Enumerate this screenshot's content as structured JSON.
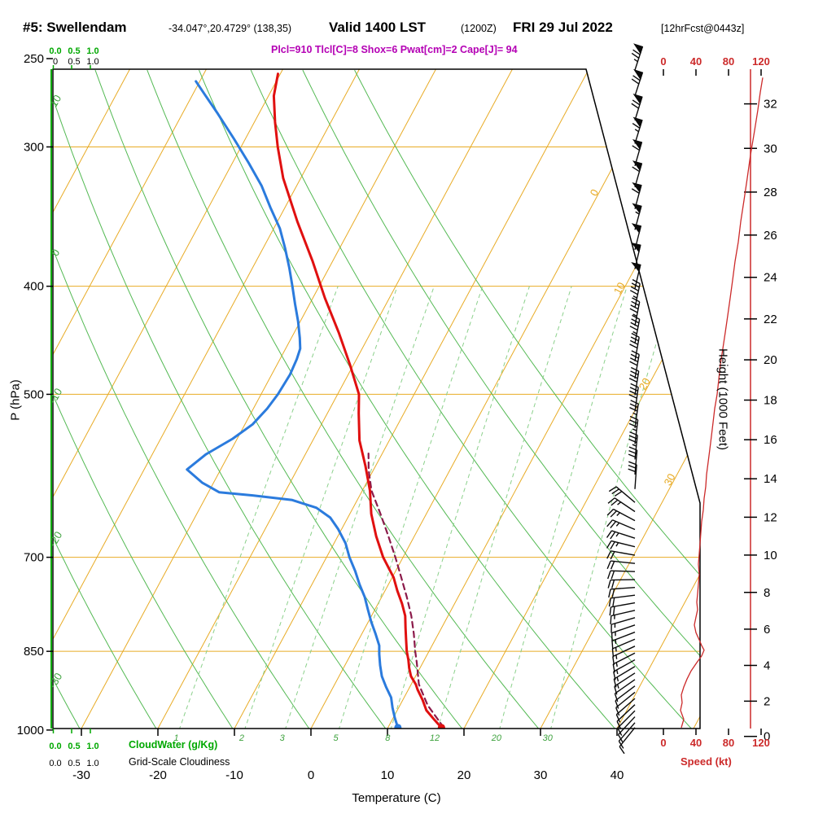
{
  "header": {
    "station": "#5: Swellendam",
    "coords": "-34.047°,20.4729° (138,35)",
    "valid": "Valid 1400 LST",
    "zulu": "(1200Z)",
    "date": "FRI 29 Jul 2022",
    "fcst": "[12hrFcst@0443z]",
    "params": "Plcl=910 Tlcl[C]=8 Shox=6 Pwat[cm]=2 Cape[J]= 94"
  },
  "axes": {
    "pressure": {
      "label": "P (hPa)"
    },
    "temperature": {
      "label": "Temperature (C)"
    },
    "height": {
      "label": "Height (1000 Feet)"
    },
    "speed": {
      "label": "Speed (kt)"
    },
    "cloudwater": {
      "label": "CloudWater (g/Kg)"
    },
    "cloudiness": {
      "label": "Grid-Scale Cloudiness"
    }
  },
  "colors": {
    "isotherm": "#e8ab25",
    "adiabat": "#53b953",
    "mixing": "#8bd08b",
    "green_axis": "#00a800",
    "label_green": "#3da23d",
    "temperature": "#e01010",
    "dewpoint": "#2b7bdd",
    "parcel": "#8b1a4a",
    "speed": "#cc2a2a",
    "barb": "#0a0a0a"
  },
  "chart_data": {
    "type": "skewt_sounding",
    "station": "Swellendam",
    "valid": "1400 LST (1200Z) FRI 29 Jul 2022",
    "indices": {
      "Plcl_hPa": 910,
      "Tlcl_C": 8,
      "Showalter": 6,
      "Pwat_cm": 2,
      "Cape_J": 94
    },
    "pressure_ticks": [
      250,
      300,
      400,
      500,
      700,
      850,
      1000
    ],
    "temp_ticks": [
      -30,
      -20,
      -10,
      0,
      10,
      20,
      30,
      40
    ],
    "height_ticks_kft": [
      0,
      2,
      4,
      6,
      8,
      10,
      12,
      14,
      16,
      18,
      20,
      22,
      24,
      26,
      28,
      30,
      32
    ],
    "speed_ticks": [
      0,
      40,
      80,
      120
    ],
    "isobars": [
      300,
      400,
      500,
      700,
      850
    ],
    "isotherms": [
      -80,
      -70,
      -60,
      -50,
      -40,
      -30,
      -20,
      -10,
      0,
      10,
      20,
      30,
      40,
      50
    ],
    "isotherm_labels": [
      0,
      10,
      20,
      30
    ],
    "dry_adiabats": [
      -30,
      -20,
      -10,
      0,
      10,
      20,
      30,
      40,
      50,
      60,
      70
    ],
    "dry_adiabat_labels": [
      10,
      0,
      -10,
      -20,
      -30
    ],
    "mixing_ratios": [
      1,
      2,
      3,
      5,
      8,
      12,
      20,
      30
    ],
    "cloudwater_scale": {
      "top_green": [
        "0.0",
        "0.5",
        "1.0"
      ],
      "top_black": [
        "0",
        "0.5",
        "1.0"
      ],
      "bottom_green": [
        "0.0",
        "0.5",
        "1.0"
      ],
      "bottom_black": [
        "0.0",
        "0.5",
        "1.0"
      ]
    },
    "temperature_profile": [
      [
        995,
        17.0
      ],
      [
        980,
        15.6
      ],
      [
        960,
        13.8
      ],
      [
        940,
        12.6
      ],
      [
        920,
        11.2
      ],
      [
        910,
        10.6
      ],
      [
        895,
        9.4
      ],
      [
        880,
        8.6
      ],
      [
        865,
        7.9
      ],
      [
        850,
        7.1
      ],
      [
        830,
        6.2
      ],
      [
        810,
        5.3
      ],
      [
        790,
        4.4
      ],
      [
        770,
        3.1
      ],
      [
        750,
        1.6
      ],
      [
        730,
        0.2
      ],
      [
        700,
        -2.6
      ],
      [
        670,
        -5.0
      ],
      [
        640,
        -7.2
      ],
      [
        610,
        -9.0
      ],
      [
        580,
        -11.3
      ],
      [
        550,
        -13.9
      ],
      [
        520,
        -15.9
      ],
      [
        500,
        -17.2
      ],
      [
        470,
        -20.5
      ],
      [
        440,
        -24.2
      ],
      [
        410,
        -28.4
      ],
      [
        380,
        -32.6
      ],
      [
        350,
        -37.4
      ],
      [
        320,
        -42.3
      ],
      [
        300,
        -45.2
      ],
      [
        285,
        -47.3
      ],
      [
        270,
        -49.3
      ],
      [
        258,
        -50.3
      ]
    ],
    "dewpoint_profile": [
      [
        995,
        11.3
      ],
      [
        975,
        10.2
      ],
      [
        955,
        9.2
      ],
      [
        935,
        8.3
      ],
      [
        915,
        6.9
      ],
      [
        895,
        5.6
      ],
      [
        875,
        4.6
      ],
      [
        855,
        3.7
      ],
      [
        840,
        3.1
      ],
      [
        820,
        1.8
      ],
      [
        800,
        0.4
      ],
      [
        780,
        -0.9
      ],
      [
        760,
        -2.2
      ],
      [
        740,
        -3.8
      ],
      [
        720,
        -5.3
      ],
      [
        700,
        -7.0
      ],
      [
        680,
        -8.5
      ],
      [
        660,
        -10.5
      ],
      [
        645,
        -12.3
      ],
      [
        632,
        -14.8
      ],
      [
        622,
        -18.5
      ],
      [
        616,
        -24.0
      ],
      [
        612,
        -28.6
      ],
      [
        600,
        -31.5
      ],
      [
        584,
        -34.4
      ],
      [
        566,
        -33.0
      ],
      [
        548,
        -30.6
      ],
      [
        532,
        -29.0
      ],
      [
        515,
        -28.2
      ],
      [
        500,
        -27.8
      ],
      [
        480,
        -27.6
      ],
      [
        465,
        -27.8
      ],
      [
        455,
        -28.1
      ],
      [
        445,
        -28.9
      ],
      [
        430,
        -30.3
      ],
      [
        415,
        -31.9
      ],
      [
        400,
        -33.5
      ],
      [
        385,
        -35.2
      ],
      [
        370,
        -37.1
      ],
      [
        355,
        -39.2
      ],
      [
        340,
        -41.9
      ],
      [
        325,
        -44.6
      ],
      [
        310,
        -47.9
      ],
      [
        295,
        -51.5
      ],
      [
        280,
        -55.4
      ],
      [
        270,
        -58.2
      ],
      [
        262,
        -60.5
      ]
    ],
    "parcel_profile": [
      [
        995,
        17.3
      ],
      [
        950,
        13.6
      ],
      [
        910,
        11.0
      ],
      [
        870,
        9.2
      ],
      [
        850,
        8.2
      ],
      [
        820,
        6.8
      ],
      [
        790,
        5.2
      ],
      [
        760,
        3.3
      ],
      [
        730,
        1.2
      ],
      [
        700,
        -1.0
      ],
      [
        670,
        -3.4
      ],
      [
        640,
        -6.0
      ],
      [
        610,
        -8.8
      ],
      [
        585,
        -10.6
      ],
      [
        565,
        -11.8
      ]
    ],
    "surface_temp": [
      995,
      17.0
    ],
    "surface_dewpoint": [
      995,
      11.3
    ],
    "wind_speed_profile": [
      [
        995,
        22
      ],
      [
        978,
        25
      ],
      [
        960,
        21
      ],
      [
        945,
        23
      ],
      [
        930,
        22
      ],
      [
        915,
        25
      ],
      [
        900,
        29
      ],
      [
        885,
        34
      ],
      [
        870,
        41
      ],
      [
        858,
        47
      ],
      [
        848,
        50
      ],
      [
        840,
        47
      ],
      [
        830,
        44
      ],
      [
        818,
        40
      ],
      [
        805,
        38
      ],
      [
        792,
        40
      ],
      [
        780,
        42
      ],
      [
        768,
        41
      ],
      [
        755,
        42
      ],
      [
        740,
        43
      ],
      [
        725,
        44
      ],
      [
        710,
        43
      ],
      [
        695,
        44
      ],
      [
        680,
        45
      ],
      [
        665,
        46
      ],
      [
        650,
        47
      ],
      [
        635,
        49
      ],
      [
        620,
        50
      ],
      [
        605,
        52
      ],
      [
        590,
        53
      ],
      [
        575,
        55
      ],
      [
        560,
        57
      ],
      [
        545,
        59
      ],
      [
        530,
        61
      ],
      [
        515,
        63
      ],
      [
        500,
        66
      ],
      [
        485,
        68
      ],
      [
        470,
        70
      ],
      [
        455,
        73
      ],
      [
        440,
        76
      ],
      [
        425,
        79
      ],
      [
        410,
        82
      ],
      [
        395,
        85
      ],
      [
        380,
        88
      ],
      [
        365,
        92
      ],
      [
        350,
        95
      ],
      [
        335,
        99
      ],
      [
        320,
        103
      ],
      [
        305,
        107
      ],
      [
        290,
        112
      ],
      [
        278,
        116
      ],
      [
        268,
        119
      ],
      [
        260,
        122
      ]
    ],
    "wind_barbs": [
      [
        256,
        75,
        72
      ],
      [
        270,
        72,
        72
      ],
      [
        284,
        68,
        73
      ],
      [
        298,
        65,
        73
      ],
      [
        312,
        62,
        74
      ],
      [
        326,
        60,
        74
      ],
      [
        341,
        58,
        75
      ],
      [
        356,
        55,
        75
      ],
      [
        371,
        52,
        76
      ],
      [
        386,
        50,
        77
      ],
      [
        402,
        48,
        77
      ],
      [
        418,
        46,
        78
      ],
      [
        434,
        44,
        79
      ],
      [
        450,
        43,
        79
      ],
      [
        467,
        42,
        80
      ],
      [
        484,
        41,
        80
      ],
      [
        501,
        40,
        81
      ],
      [
        518,
        38,
        82
      ],
      [
        536,
        36,
        82
      ],
      [
        554,
        35,
        83
      ],
      [
        572,
        33,
        84
      ],
      [
        590,
        32,
        85
      ],
      [
        608,
        30,
        86
      ],
      [
        625,
        28,
        140
      ],
      [
        637,
        27,
        146
      ],
      [
        649,
        26,
        152
      ],
      [
        661,
        25,
        157
      ],
      [
        673,
        24,
        162
      ],
      [
        685,
        23,
        166
      ],
      [
        697,
        22,
        170
      ],
      [
        709,
        21,
        174
      ],
      [
        721,
        20,
        178
      ],
      [
        733,
        20,
        181
      ],
      [
        745,
        19,
        184
      ],
      [
        757,
        18,
        187
      ],
      [
        769,
        18,
        190
      ],
      [
        781,
        17,
        193
      ],
      [
        793,
        17,
        196
      ],
      [
        805,
        16,
        199
      ],
      [
        817,
        16,
        201
      ],
      [
        829,
        15,
        203
      ],
      [
        841,
        15,
        205
      ],
      [
        853,
        14,
        207
      ],
      [
        865,
        14,
        209
      ],
      [
        877,
        13,
        211
      ],
      [
        889,
        13,
        213
      ],
      [
        901,
        12,
        215
      ],
      [
        913,
        12,
        217
      ],
      [
        925,
        11,
        219
      ],
      [
        937,
        11,
        221
      ],
      [
        949,
        10,
        223
      ],
      [
        961,
        10,
        225
      ],
      [
        973,
        9,
        227
      ],
      [
        985,
        9,
        229
      ],
      [
        995,
        8,
        231
      ]
    ]
  }
}
